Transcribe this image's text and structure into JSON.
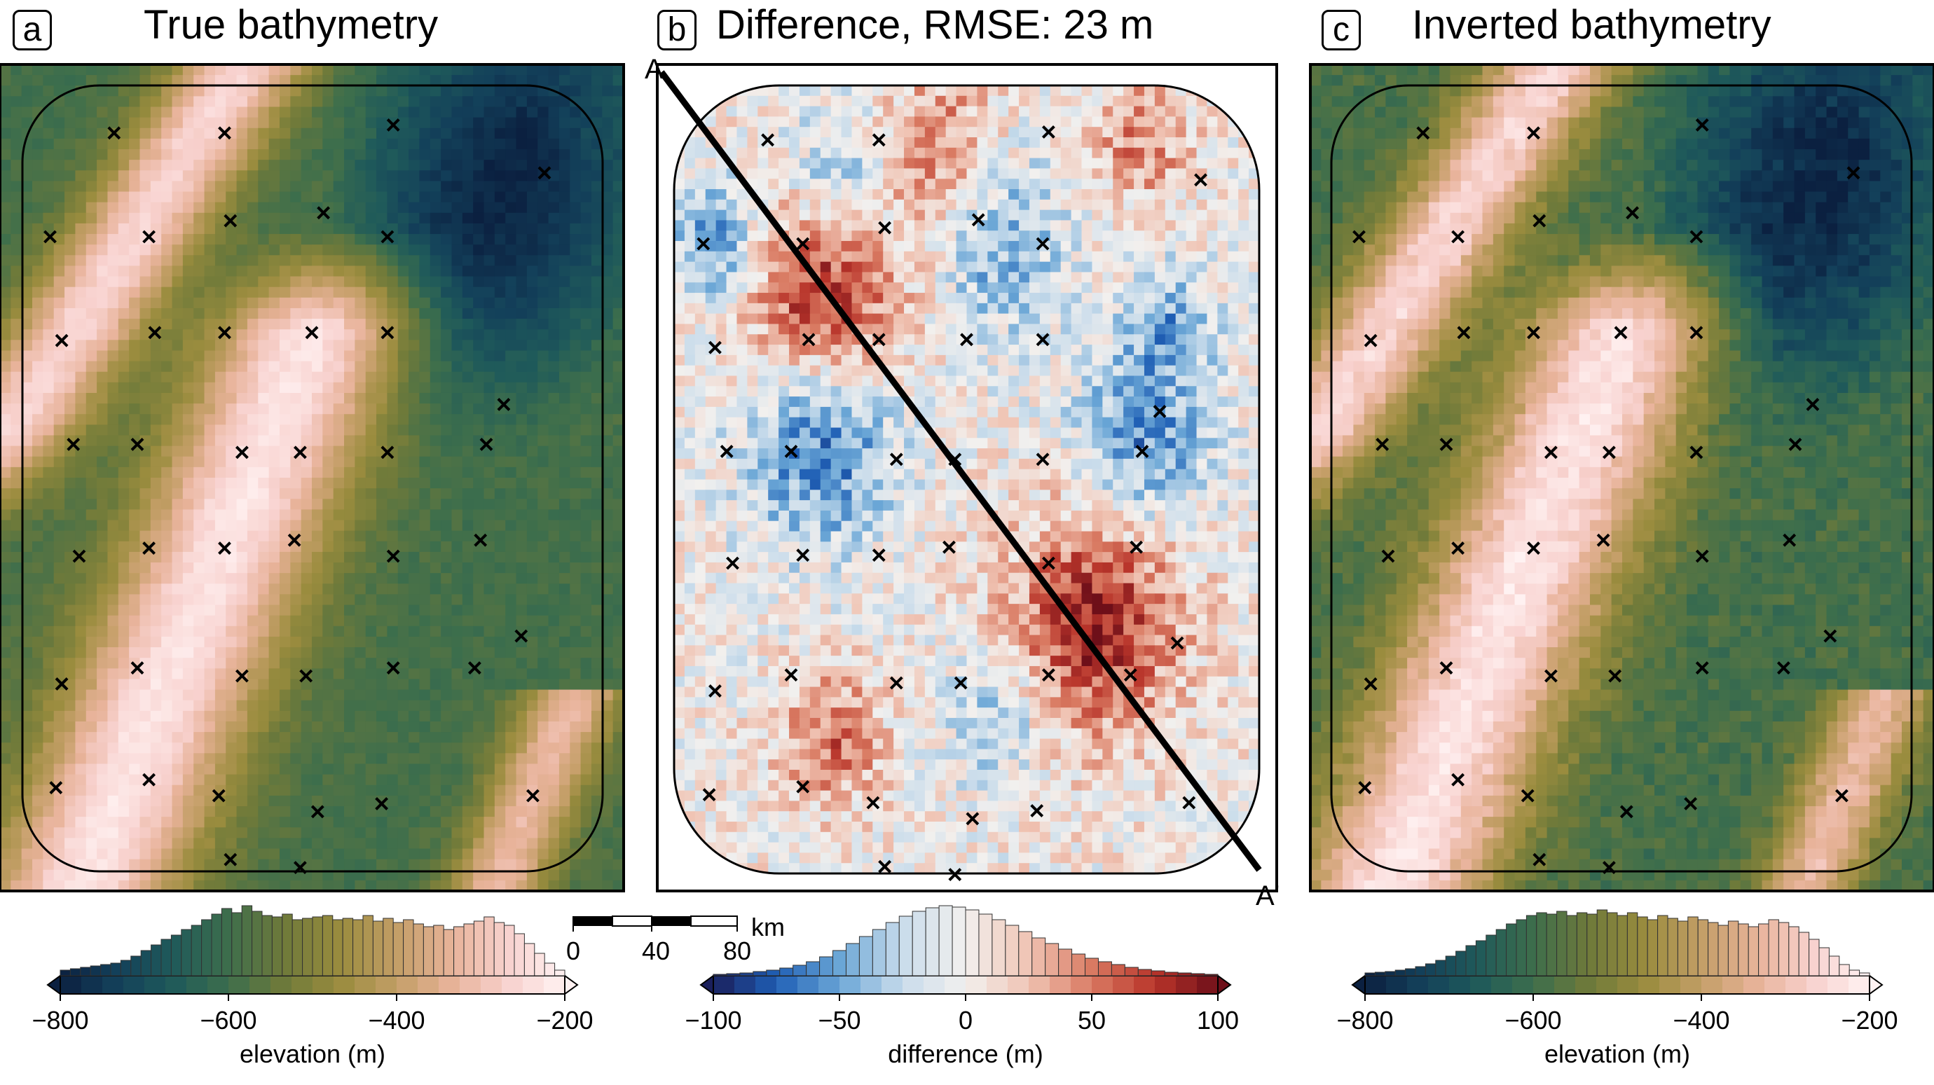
{
  "panels": [
    {
      "letter": "a",
      "title": "True bathymetry",
      "colorbar": {
        "ticks": [
          "-800",
          "-600",
          "-400",
          "-200"
        ],
        "label": "elevation (m)"
      }
    },
    {
      "letter": "b",
      "title": "Difference, RMSE: 23 m",
      "profile": {
        "start_label": "A",
        "end_label": "A'"
      },
      "scalebar": {
        "ticks": [
          "0",
          "40",
          "80"
        ],
        "unit": "km"
      },
      "colorbar": {
        "ticks": [
          "-100",
          "-50",
          "0",
          "50",
          "100"
        ],
        "label": "difference (m)"
      }
    },
    {
      "letter": "c",
      "title": "Inverted bathymetry",
      "colorbar": {
        "ticks": [
          "-800",
          "-600",
          "-400",
          "-200"
        ],
        "label": "elevation (m)"
      }
    }
  ],
  "colors": {
    "bathy_ramp": [
      "#0b2040",
      "#13405a",
      "#1f5a5a",
      "#3d6e4c",
      "#6f7a3a",
      "#9a8c3e",
      "#c39e66",
      "#e8b39a",
      "#f8d2cf",
      "#fff2f2"
    ],
    "diff_ramp": [
      "#1a1f5c",
      "#1f5fb5",
      "#6aa6d6",
      "#c9dceb",
      "#f2f0ee",
      "#f0c4b4",
      "#d97a62",
      "#b8342a",
      "#6e0f19"
    ]
  },
  "chart_data": [
    {
      "type": "heatmap",
      "title": "True bathymetry",
      "colorbar_label": "elevation (m)",
      "colorbar_range": [
        -800,
        -200
      ],
      "histogram": [
        0.08,
        0.1,
        0.12,
        0.14,
        0.16,
        0.18,
        0.22,
        0.28,
        0.36,
        0.44,
        0.52,
        0.58,
        0.66,
        0.72,
        0.8,
        0.88,
        0.96,
        0.9,
        1.0,
        0.92,
        0.86,
        0.84,
        0.88,
        0.8,
        0.82,
        0.84,
        0.86,
        0.8,
        0.82,
        0.8,
        0.86,
        0.78,
        0.82,
        0.76,
        0.8,
        0.74,
        0.7,
        0.72,
        0.66,
        0.7,
        0.74,
        0.78,
        0.84,
        0.76,
        0.72,
        0.6,
        0.46,
        0.32,
        0.18,
        0.08
      ]
    },
    {
      "type": "heatmap",
      "title": "Difference, RMSE: 23 m",
      "colorbar_label": "difference (m)",
      "colorbar_range": [
        -100,
        100
      ],
      "histogram": [
        0.02,
        0.03,
        0.04,
        0.06,
        0.08,
        0.11,
        0.15,
        0.2,
        0.27,
        0.36,
        0.46,
        0.56,
        0.66,
        0.76,
        0.85,
        0.92,
        0.97,
        1.0,
        0.98,
        0.94,
        0.88,
        0.8,
        0.72,
        0.63,
        0.54,
        0.46,
        0.38,
        0.31,
        0.25,
        0.2,
        0.16,
        0.12,
        0.09,
        0.07,
        0.05,
        0.04,
        0.03,
        0.02
      ]
    },
    {
      "type": "heatmap",
      "title": "Inverted bathymetry",
      "colorbar_label": "elevation (m)",
      "colorbar_range": [
        -800,
        -200
      ],
      "histogram": [
        0.04,
        0.05,
        0.06,
        0.08,
        0.1,
        0.13,
        0.17,
        0.22,
        0.28,
        0.35,
        0.43,
        0.5,
        0.58,
        0.66,
        0.74,
        0.8,
        0.86,
        0.9,
        0.88,
        0.92,
        0.86,
        0.9,
        0.88,
        0.94,
        0.9,
        0.86,
        0.9,
        0.84,
        0.8,
        0.86,
        0.82,
        0.78,
        0.84,
        0.8,
        0.76,
        0.72,
        0.78,
        0.74,
        0.7,
        0.74,
        0.8,
        0.76,
        0.7,
        0.62,
        0.52,
        0.4,
        0.28,
        0.16,
        0.08,
        0.04
      ]
    }
  ]
}
